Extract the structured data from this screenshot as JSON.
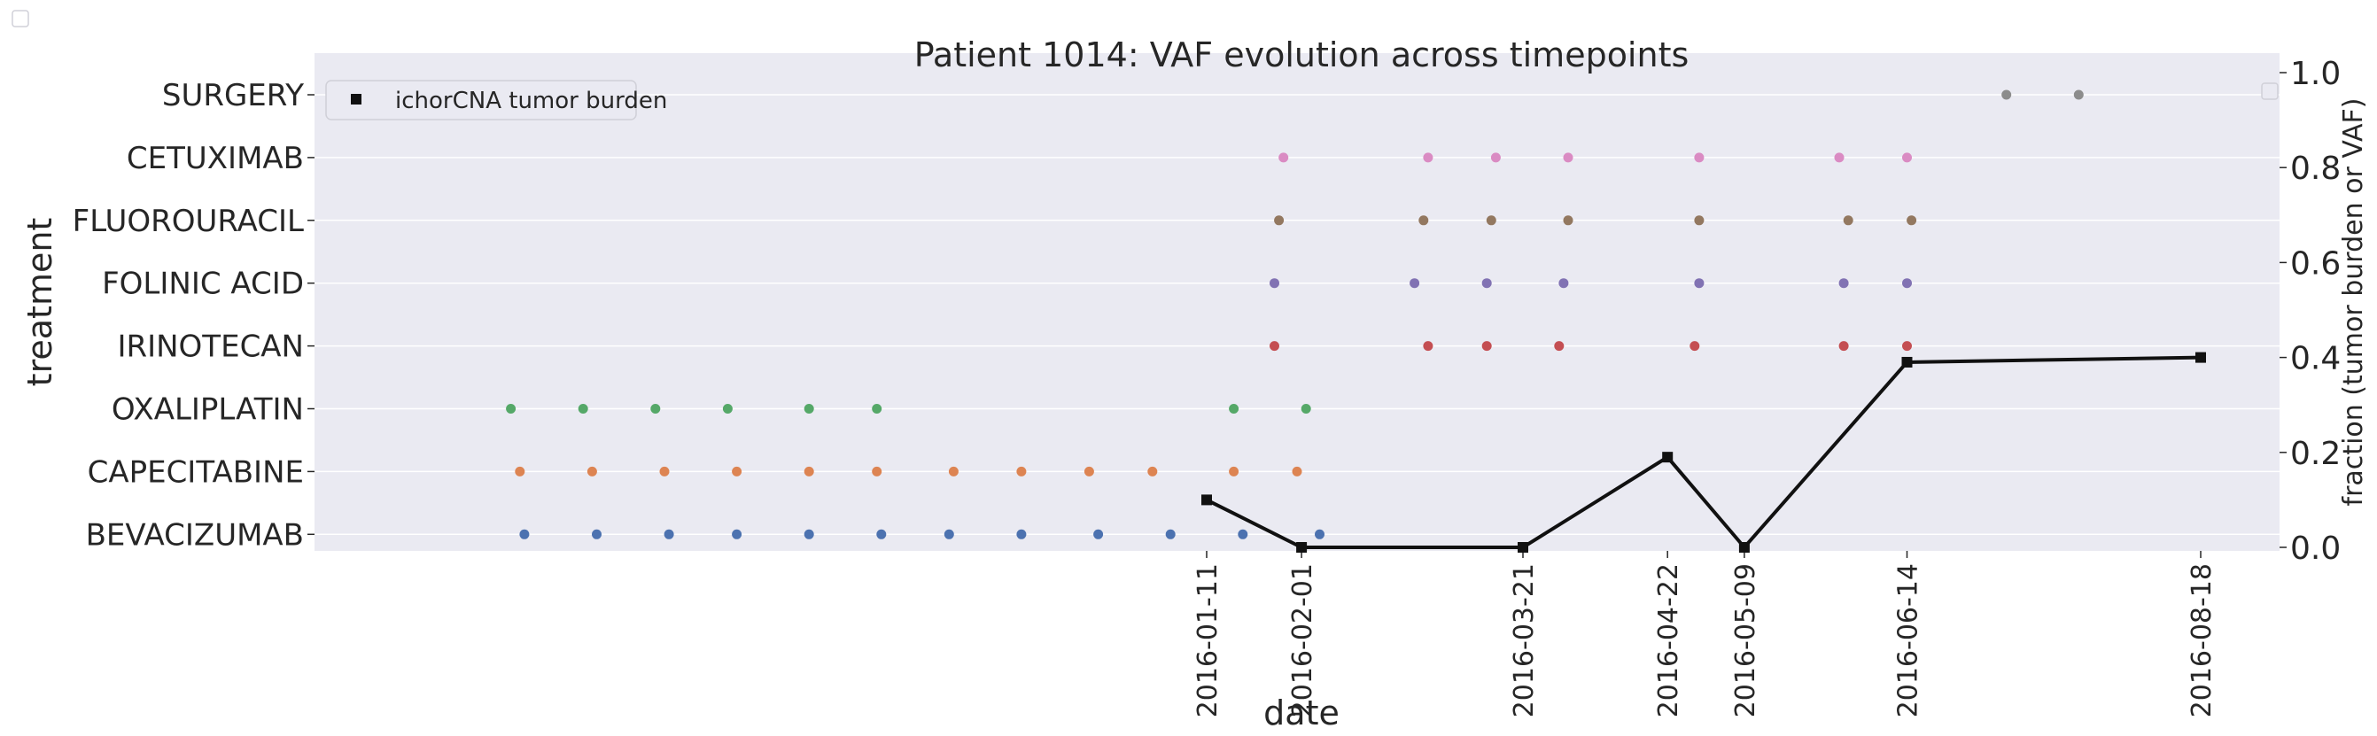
{
  "chart_data": {
    "type": "scatter",
    "title": "Patient 1014: VAF evolution across timepoints",
    "xlabel": "date",
    "ylabel": "treatment",
    "y2label": "fraction (tumor burden or VAF)",
    "y2lim": [
      0,
      1
    ],
    "y2ticks": [
      "0.0",
      "0.2",
      "0.4",
      "0.6",
      "0.8",
      "1.0"
    ],
    "grid": true,
    "x_tick_labels": [
      "2016-01-11",
      "2016-02-01",
      "2016-03-21",
      "2016-04-22",
      "2016-05-09",
      "2016-06-14",
      "2016-08-18"
    ],
    "treatments": [
      "BEVACIZUMAB",
      "CAPECITABINE",
      "OXALIPLATIN",
      "IRINOTECAN",
      "FOLINIC ACID",
      "FLUOROURACIL",
      "CETUXIMAB",
      "SURGERY"
    ],
    "colors": {
      "BEVACIZUMAB": "#4c72b0",
      "CAPECITABINE": "#dd8452",
      "OXALIPLATIN": "#55a868",
      "IRINOTECAN": "#c44e52",
      "FOLINIC ACID": "#8172b3",
      "FLUOROURACIL": "#937860",
      "CETUXIMAB": "#da8bc3",
      "SURGERY": "#8c8c8c",
      "tumor_burden": "#111111",
      "background": "#eaeaf2"
    },
    "treatment_events": [
      {
        "treatment": "BEVACIZUMAB",
        "dates": [
          "2015-08-13",
          "2015-08-29",
          "2015-09-14",
          "2015-09-29",
          "2015-10-15",
          "2015-10-31",
          "2015-11-15",
          "2015-12-01",
          "2015-12-18",
          "2016-01-03",
          "2016-01-19",
          "2016-02-05"
        ]
      },
      {
        "treatment": "CAPECITABINE",
        "dates": [
          "2015-08-12",
          "2015-08-28",
          "2015-09-13",
          "2015-09-29",
          "2015-10-15",
          "2015-10-30",
          "2015-11-16",
          "2015-12-01",
          "2015-12-16",
          "2015-12-30",
          "2016-01-17",
          "2016-01-31"
        ]
      },
      {
        "treatment": "OXALIPLATIN",
        "dates": [
          "2015-08-10",
          "2015-08-26",
          "2015-09-11",
          "2015-09-27",
          "2015-10-15",
          "2015-10-30",
          "2016-01-17",
          "2016-02-02"
        ]
      },
      {
        "treatment": "IRINOTECAN",
        "dates": [
          "2016-01-26",
          "2016-02-29",
          "2016-03-13",
          "2016-03-29",
          "2016-04-28",
          "2016-05-31",
          "2016-06-14"
        ]
      },
      {
        "treatment": "FOLINIC ACID",
        "dates": [
          "2016-01-26",
          "2016-02-26",
          "2016-03-13",
          "2016-03-30",
          "2016-04-29",
          "2016-05-31",
          "2016-06-14"
        ]
      },
      {
        "treatment": "FLUOROURACIL",
        "dates": [
          "2016-01-27",
          "2016-02-28",
          "2016-03-14",
          "2016-03-31",
          "2016-04-29",
          "2016-06-01",
          "2016-06-15"
        ]
      },
      {
        "treatment": "CETUXIMAB",
        "dates": [
          "2016-01-28",
          "2016-02-29",
          "2016-03-15",
          "2016-03-31",
          "2016-04-29",
          "2016-05-30",
          "2016-06-14"
        ]
      },
      {
        "treatment": "SURGERY",
        "dates": [
          "2016-07-06",
          "2016-07-22"
        ]
      }
    ],
    "series": [
      {
        "name": "ichorCNA tumor burden",
        "x": [
          "2016-01-11",
          "2016-02-01",
          "2016-03-21",
          "2016-04-22",
          "2016-05-09",
          "2016-06-14",
          "2016-08-18"
        ],
        "y": [
          0.1,
          0.0,
          0.0,
          0.19,
          0.0,
          0.39,
          0.4
        ]
      }
    ],
    "legend": {
      "position": "top-left",
      "entries": [
        "ichorCNA tumor burden"
      ]
    }
  }
}
